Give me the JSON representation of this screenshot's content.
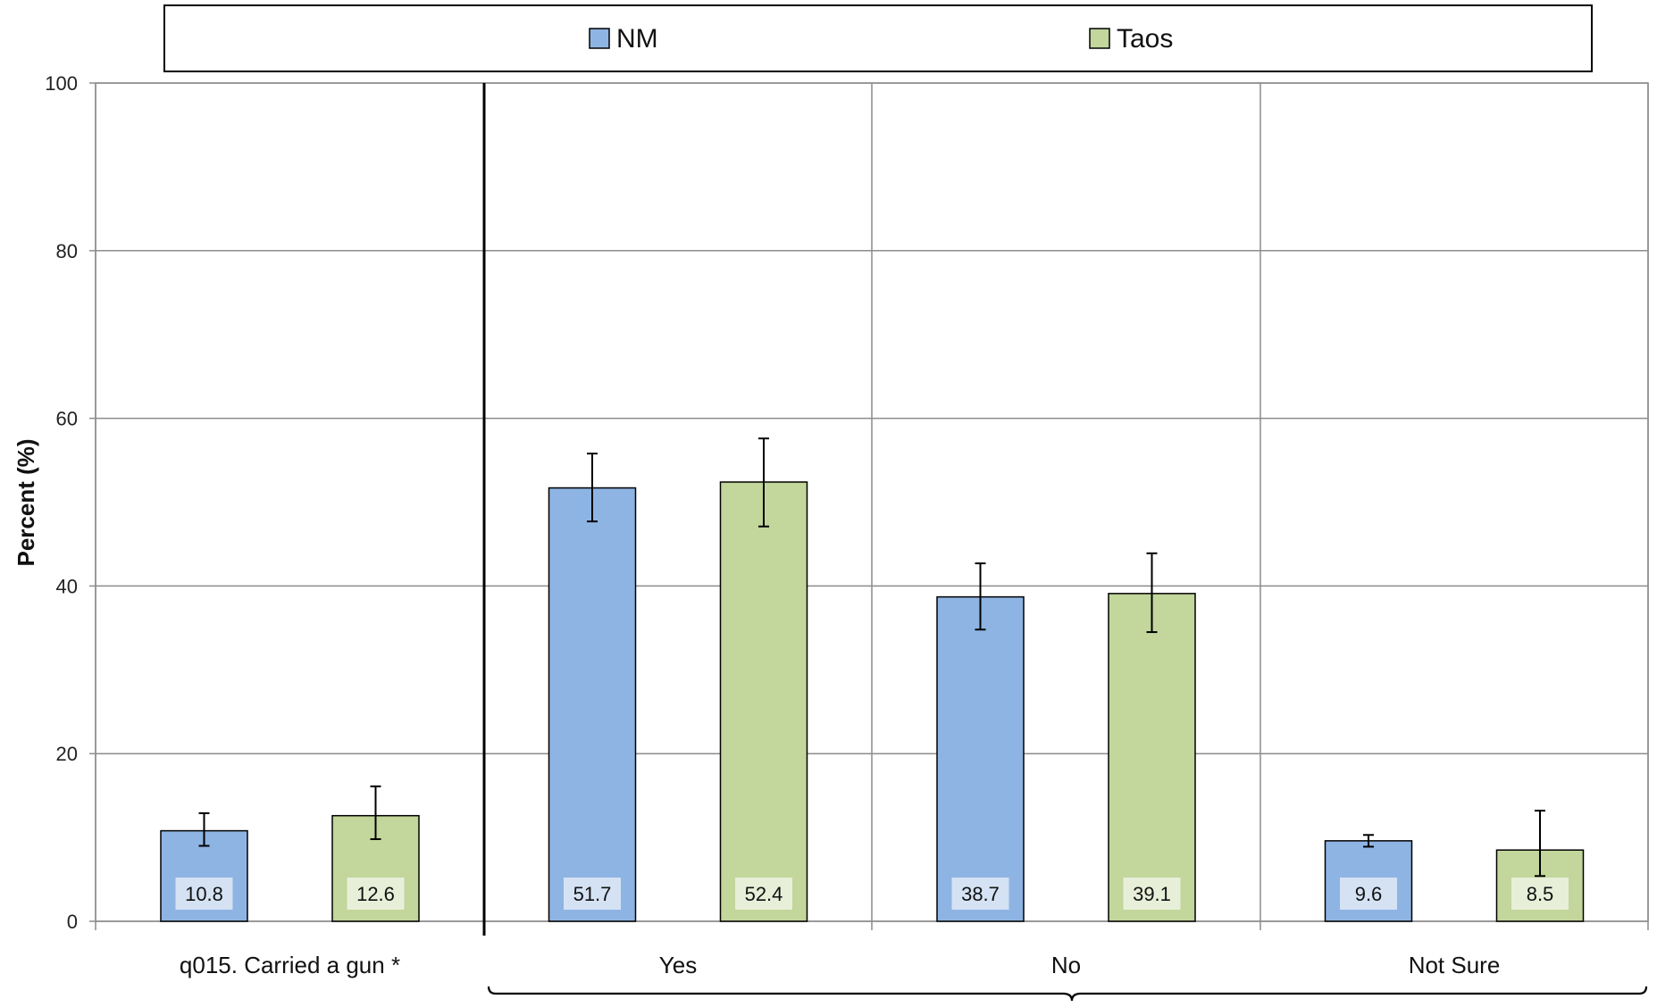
{
  "chart_data": {
    "type": "bar",
    "ylabel": "Percent (%)",
    "ylim": [
      0,
      100
    ],
    "yticks": [
      0,
      20,
      40,
      60,
      80,
      100
    ],
    "grid": true,
    "legend": {
      "position": "top"
    },
    "series": [
      {
        "name": "NM",
        "color": "#8EB4E3"
      },
      {
        "name": "Taos",
        "color": "#C3D69B"
      }
    ],
    "groups": [
      {
        "label": "q015. Carried a gun *",
        "values": [
          {
            "value": 10.8,
            "err_low": 9.0,
            "err_high": 12.9
          },
          {
            "value": 12.6,
            "err_low": 9.8,
            "err_high": 16.1
          }
        ]
      },
      {
        "label": "Yes",
        "values": [
          {
            "value": 51.7,
            "err_low": 47.7,
            "err_high": 55.8
          },
          {
            "value": 52.4,
            "err_low": 47.1,
            "err_high": 57.6
          }
        ]
      },
      {
        "label": "No",
        "values": [
          {
            "value": 38.7,
            "err_low": 34.8,
            "err_high": 42.7
          },
          {
            "value": 39.1,
            "err_low": 34.5,
            "err_high": 43.9
          }
        ]
      },
      {
        "label": "Not Sure",
        "values": [
          {
            "value": 9.6,
            "err_low": 8.9,
            "err_high": 10.3
          },
          {
            "value": 8.5,
            "err_low": 5.4,
            "err_high": 13.2
          }
        ]
      }
    ]
  }
}
